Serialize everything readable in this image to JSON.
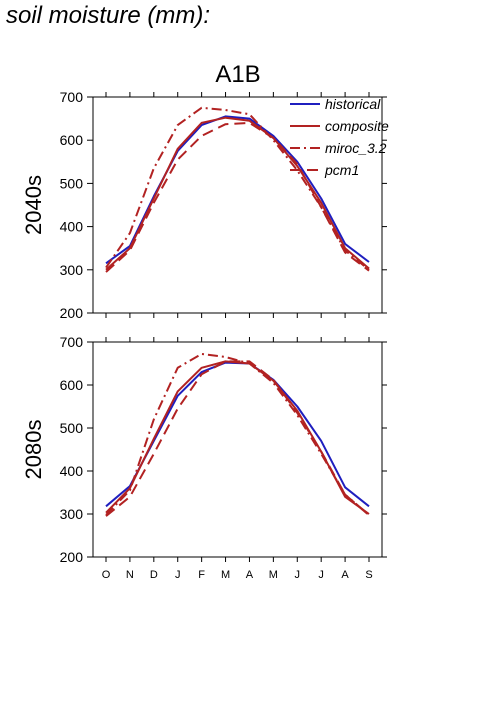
{
  "figure_title": "soil moisture (mm):",
  "colors": {
    "historical": "#1f1fbf",
    "composite": "#b22222",
    "miroc_3.2": "#b22222",
    "pcm1": "#b22222"
  },
  "chart_data": {
    "type": "line",
    "title": "A1B",
    "categories": [
      "O",
      "N",
      "D",
      "J",
      "F",
      "M",
      "A",
      "M",
      "J",
      "J",
      "A",
      "S"
    ],
    "ylim": [
      200,
      700
    ],
    "yticks": [
      200,
      300,
      400,
      500,
      600,
      700
    ],
    "legend": {
      "placement": "top-right",
      "entries": [
        "historical",
        "composite",
        "miroc_3.2",
        "pcm1"
      ]
    },
    "panels": [
      {
        "ylabel": "2040s",
        "series": [
          {
            "name": "historical",
            "style": "solid",
            "color": "#1f1fbf",
            "values": [
              315,
              355,
              470,
              575,
              635,
              655,
              650,
              610,
              550,
              465,
              360,
              318
            ]
          },
          {
            "name": "composite",
            "style": "solid",
            "color": "#b22222",
            "values": [
              300,
              350,
              465,
              580,
              640,
              652,
              645,
              605,
              540,
              455,
              350,
              303
            ]
          },
          {
            "name": "miroc_3.2",
            "style": "dashdot",
            "color": "#b22222",
            "values": [
              305,
              385,
              535,
              635,
              675,
              670,
              660,
              600,
              530,
              445,
              345,
              300
            ]
          },
          {
            "name": "pcm1",
            "style": "dashed",
            "color": "#b22222",
            "values": [
              295,
              345,
              455,
              555,
              610,
              637,
              640,
              605,
              545,
              445,
              340,
              298
            ]
          }
        ]
      },
      {
        "ylabel": "2080s",
        "series": [
          {
            "name": "historical",
            "style": "solid",
            "color": "#1f1fbf",
            "values": [
              318,
              365,
              470,
              575,
              630,
              652,
              650,
              612,
              550,
              470,
              362,
              318
            ]
          },
          {
            "name": "composite",
            "style": "solid",
            "color": "#b22222",
            "values": [
              303,
              360,
              475,
              585,
              640,
              655,
              650,
              610,
              540,
              445,
              340,
              300
            ]
          },
          {
            "name": "miroc_3.2",
            "style": "dashdot",
            "color": "#b22222",
            "values": [
              298,
              355,
              520,
              640,
              672,
              665,
              650,
              605,
              530,
              440,
              345,
              298
            ]
          },
          {
            "name": "pcm1",
            "style": "dashed",
            "color": "#b22222",
            "values": [
              295,
              340,
              440,
              545,
              625,
              655,
              655,
              612,
              535,
              445,
              345,
              297
            ]
          }
        ]
      }
    ]
  }
}
